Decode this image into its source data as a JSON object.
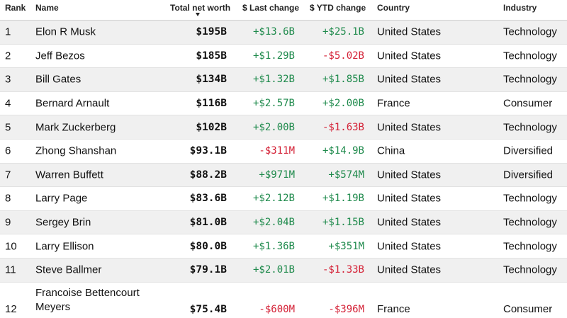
{
  "header": {
    "rank": "Rank",
    "name": "Name",
    "net_worth": "Total net worth",
    "last_change": "$ Last change",
    "ytd_change": "$ YTD change",
    "country": "Country",
    "industry": "Industry",
    "sort_icon": "sort-descending-icon"
  },
  "colors": {
    "positive": "#1f8a4c",
    "negative": "#d42136",
    "row_shade": "#f0f0f0"
  },
  "rows": [
    {
      "rank": "1",
      "name": "Elon R Musk",
      "worth": "$195B",
      "last": "+$13.6B",
      "ytd": "+$25.1B",
      "country": "United States",
      "industry": "Technology"
    },
    {
      "rank": "2",
      "name": "Jeff Bezos",
      "worth": "$185B",
      "last": "+$1.29B",
      "ytd": "-$5.02B",
      "country": "United States",
      "industry": "Technology"
    },
    {
      "rank": "3",
      "name": "Bill Gates",
      "worth": "$134B",
      "last": "+$1.32B",
      "ytd": "+$1.85B",
      "country": "United States",
      "industry": "Technology"
    },
    {
      "rank": "4",
      "name": "Bernard Arnault",
      "worth": "$116B",
      "last": "+$2.57B",
      "ytd": "+$2.00B",
      "country": "France",
      "industry": "Consumer"
    },
    {
      "rank": "5",
      "name": "Mark Zuckerberg",
      "worth": "$102B",
      "last": "+$2.00B",
      "ytd": "-$1.63B",
      "country": "United States",
      "industry": "Technology"
    },
    {
      "rank": "6",
      "name": "Zhong Shanshan",
      "worth": "$93.1B",
      "last": "-$311M",
      "ytd": "+$14.9B",
      "country": "China",
      "industry": "Diversified"
    },
    {
      "rank": "7",
      "name": "Warren Buffett",
      "worth": "$88.2B",
      "last": "+$971M",
      "ytd": "+$574M",
      "country": "United States",
      "industry": "Diversified"
    },
    {
      "rank": "8",
      "name": "Larry Page",
      "worth": "$83.6B",
      "last": "+$2.12B",
      "ytd": "+$1.19B",
      "country": "United States",
      "industry": "Technology"
    },
    {
      "rank": "9",
      "name": "Sergey Brin",
      "worth": "$81.0B",
      "last": "+$2.04B",
      "ytd": "+$1.15B",
      "country": "United States",
      "industry": "Technology"
    },
    {
      "rank": "10",
      "name": "Larry Ellison",
      "worth": "$80.0B",
      "last": "+$1.36B",
      "ytd": "+$351M",
      "country": "United States",
      "industry": "Technology"
    },
    {
      "rank": "11",
      "name": "Steve Ballmer",
      "worth": "$79.1B",
      "last": "+$2.01B",
      "ytd": "-$1.33B",
      "country": "United States",
      "industry": "Technology"
    },
    {
      "rank": "12",
      "name": "Francoise Bettencourt Meyers",
      "worth": "$75.4B",
      "last": "-$600M",
      "ytd": "-$396M",
      "country": "France",
      "industry": "Consumer"
    }
  ]
}
